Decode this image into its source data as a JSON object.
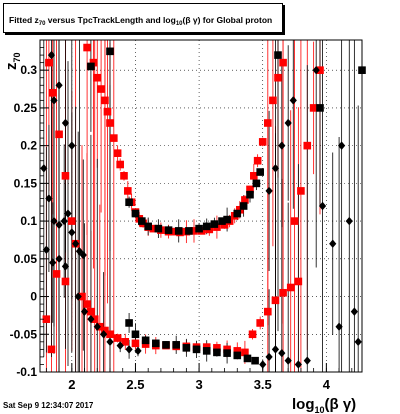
{
  "chart_data": {
    "type": "scatter",
    "title_parts": {
      "t1": "Fitted  z",
      "t1_sub": "70",
      "t2": " versus TpcTrackLength and log",
      "t2_sub": "10",
      "t3": "(β γ) for Global proton"
    },
    "xlabel_parts": {
      "main": "log",
      "sub": "10",
      "rest": "(β γ)"
    },
    "ylabel_parts": {
      "main": "z",
      "sub": "70"
    },
    "xlim": [
      1.75,
      4.28
    ],
    "ylim": [
      -0.1,
      0.34
    ],
    "x_ticks": [
      "2",
      "2.5",
      "3",
      "3.5",
      "4"
    ],
    "x_tick_values": [
      2,
      2.5,
      3,
      3.5,
      4
    ],
    "y_ticks": [
      "-0.1",
      "-0.05",
      "0",
      "0.05",
      "0.1",
      "0.15",
      "0.2",
      "0.25",
      "0.3"
    ],
    "y_tick_values": [
      -0.1,
      -0.05,
      0,
      0.05,
      0.1,
      0.15,
      0.2,
      0.25,
      0.3
    ],
    "grid": true,
    "colors": {
      "red": "#ff0000",
      "black": "#000000"
    },
    "series": [
      {
        "color": "red",
        "marker": "square",
        "points": [
          [
            2.12,
            0.33
          ],
          [
            2.17,
            0.31
          ],
          [
            2.2,
            0.29
          ],
          [
            2.23,
            0.275
          ],
          [
            2.26,
            0.26
          ],
          [
            2.28,
            0.245
          ],
          [
            2.3,
            0.23
          ],
          [
            2.33,
            0.21
          ],
          [
            2.36,
            0.19
          ],
          [
            2.38,
            0.175
          ],
          [
            2.41,
            0.16
          ],
          [
            2.44,
            0.14
          ],
          [
            2.47,
            0.125
          ],
          [
            2.5,
            0.112
          ],
          [
            2.53,
            0.103
          ],
          [
            2.56,
            0.097
          ],
          [
            2.6,
            0.092
          ],
          [
            2.64,
            0.09
          ],
          [
            2.7,
            0.088
          ],
          [
            2.76,
            0.086
          ],
          [
            2.8,
            0.086
          ],
          [
            2.85,
            0.085
          ],
          [
            2.9,
            0.086
          ],
          [
            2.96,
            0.087
          ],
          [
            3.02,
            0.087
          ],
          [
            3.08,
            0.089
          ],
          [
            3.14,
            0.092
          ],
          [
            3.2,
            0.095
          ],
          [
            3.24,
            0.1
          ],
          [
            3.28,
            0.107
          ],
          [
            3.32,
            0.115
          ],
          [
            3.36,
            0.128
          ],
          [
            3.4,
            0.142
          ],
          [
            3.43,
            0.16
          ],
          [
            3.46,
            0.18
          ],
          [
            3.5,
            0.205
          ],
          [
            3.54,
            0.23
          ],
          [
            3.58,
            0.26
          ],
          [
            3.62,
            0.29
          ],
          [
            3.66,
            0.31
          ],
          [
            2.08,
            0.0
          ],
          [
            2.12,
            -0.01
          ],
          [
            2.15,
            -0.02
          ],
          [
            2.18,
            -0.03
          ],
          [
            2.22,
            -0.04
          ],
          [
            2.26,
            -0.045
          ],
          [
            2.3,
            -0.05
          ],
          [
            2.36,
            -0.055
          ],
          [
            2.42,
            -0.06
          ],
          [
            2.5,
            -0.062
          ],
          [
            2.58,
            -0.063
          ],
          [
            2.66,
            -0.065
          ],
          [
            2.74,
            -0.065
          ],
          [
            2.82,
            -0.066
          ],
          [
            2.9,
            -0.066
          ],
          [
            2.98,
            -0.067
          ],
          [
            3.06,
            -0.067
          ],
          [
            3.14,
            -0.068
          ],
          [
            3.22,
            -0.07
          ],
          [
            3.3,
            -0.072
          ],
          [
            3.36,
            -0.074
          ],
          [
            3.42,
            -0.05
          ],
          [
            3.48,
            -0.035
          ],
          [
            3.54,
            -0.02
          ],
          [
            3.6,
            -0.005
          ],
          [
            3.66,
            0.005
          ],
          [
            3.72,
            0.012
          ],
          [
            3.78,
            0.02
          ],
          [
            1.82,
            0.31
          ],
          [
            1.85,
            0.27
          ],
          [
            1.9,
            0.215
          ],
          [
            1.95,
            0.16
          ],
          [
            2.0,
            0.1
          ],
          [
            2.03,
            0.07
          ],
          [
            1.88,
            0.03
          ],
          [
            1.95,
            0.02
          ],
          [
            1.8,
            -0.03
          ],
          [
            1.84,
            -0.07
          ],
          [
            3.75,
            0.1
          ],
          [
            3.8,
            0.14
          ],
          [
            3.85,
            0.2
          ],
          [
            3.9,
            0.25
          ],
          [
            3.95,
            0.3
          ]
        ]
      },
      {
        "color": "black",
        "marker": "square",
        "points": [
          [
            2.45,
            0.125
          ],
          [
            2.5,
            0.11
          ],
          [
            2.55,
            0.1
          ],
          [
            2.6,
            0.093
          ],
          [
            2.68,
            0.09
          ],
          [
            2.76,
            0.088
          ],
          [
            2.84,
            0.087
          ],
          [
            2.92,
            0.087
          ],
          [
            3.0,
            0.09
          ],
          [
            3.06,
            0.093
          ],
          [
            3.12,
            0.096
          ],
          [
            3.18,
            0.1
          ],
          [
            3.22,
            0.102
          ],
          [
            3.3,
            0.11
          ],
          [
            3.35,
            0.12
          ],
          [
            3.4,
            0.135
          ],
          [
            3.45,
            0.15
          ],
          [
            3.48,
            0.165
          ],
          [
            2.45,
            -0.035
          ],
          [
            2.5,
            -0.05
          ],
          [
            2.58,
            -0.058
          ],
          [
            2.66,
            -0.062
          ],
          [
            2.74,
            -0.064
          ],
          [
            2.82,
            -0.064
          ],
          [
            2.9,
            -0.068
          ],
          [
            2.98,
            -0.07
          ],
          [
            3.06,
            -0.072
          ],
          [
            3.14,
            -0.074
          ],
          [
            3.22,
            -0.075
          ],
          [
            3.3,
            -0.078
          ],
          [
            3.38,
            -0.082
          ],
          [
            3.44,
            -0.085
          ],
          [
            2.15,
            0.305
          ],
          [
            2.3,
            0.325
          ],
          [
            3.62,
            0.32
          ],
          [
            4.28,
            0.3
          ],
          [
            3.95,
            0.25
          ]
        ]
      },
      {
        "color": "black",
        "marker": "circle",
        "points": [
          [
            1.78,
            0.17
          ],
          [
            1.82,
            0.13
          ],
          [
            1.86,
            0.1
          ],
          [
            1.9,
            0.095
          ],
          [
            1.94,
            0.1
          ],
          [
            1.97,
            0.11
          ],
          [
            2.0,
            0.085
          ],
          [
            2.03,
            0.07
          ],
          [
            2.06,
            0.06
          ],
          [
            2.09,
            0.055
          ],
          [
            1.8,
            0.062
          ],
          [
            1.85,
            0.045
          ],
          [
            1.9,
            0.05
          ],
          [
            1.95,
            0.04
          ],
          [
            2.05,
            -0.0
          ],
          [
            2.1,
            -0.02
          ],
          [
            2.15,
            -0.03
          ],
          [
            2.2,
            -0.04
          ],
          [
            2.25,
            -0.05
          ],
          [
            2.3,
            -0.06
          ],
          [
            2.38,
            -0.065
          ],
          [
            2.45,
            -0.07
          ],
          [
            2.52,
            -0.072
          ],
          [
            1.84,
            0.32
          ],
          [
            1.9,
            0.28
          ],
          [
            1.86,
            0.26
          ],
          [
            1.95,
            0.23
          ],
          [
            2.0,
            0.2
          ],
          [
            3.55,
            0.14
          ],
          [
            3.6,
            0.17
          ],
          [
            3.65,
            0.2
          ],
          [
            3.7,
            0.23
          ],
          [
            3.74,
            0.26
          ],
          [
            3.5,
            -0.09
          ],
          [
            3.55,
            -0.08
          ],
          [
            3.6,
            -0.07
          ],
          [
            3.65,
            -0.075
          ],
          [
            3.7,
            -0.085
          ],
          [
            3.78,
            -0.09
          ],
          [
            3.85,
            -0.085
          ],
          [
            3.92,
            0.3
          ],
          [
            3.97,
            0.12
          ],
          [
            4.05,
            0.07
          ],
          [
            4.12,
            0.2
          ],
          [
            4.18,
            0.1
          ],
          [
            4.1,
            -0.04
          ],
          [
            4.22,
            -0.02
          ],
          [
            4.25,
            -0.06
          ]
        ]
      }
    ]
  },
  "timestamp": "Sat Sep  9 12:34:07 2017"
}
